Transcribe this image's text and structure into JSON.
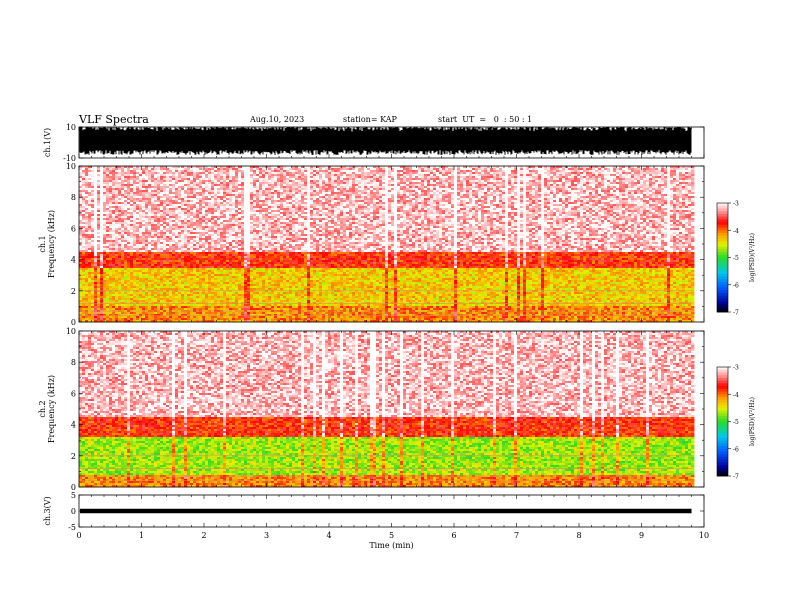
{
  "header": {
    "title": "VLF Spectra",
    "date": "Aug.10, 2023",
    "station": "station= KAP",
    "start_ut": "start  UT  =   0  : 50 : 1"
  },
  "chart_data": [
    {
      "name": "ch1-waveform",
      "type": "line",
      "ylabel": "ch.1(V)",
      "ylim": [
        -10,
        10
      ],
      "yticks": [
        "10",
        "-10"
      ],
      "xlim": [
        0,
        10
      ],
      "note": "waveform envelope saturating between about -7 and +10 V from 0 to 9.8 min"
    },
    {
      "name": "ch1-spectrogram",
      "type": "heatmap",
      "ylabel": "ch.1\nFrequency  (kHz)",
      "ylim": [
        0,
        10
      ],
      "yticks": [
        "0",
        "2",
        "4",
        "6",
        "8",
        "10"
      ],
      "xlim": [
        0,
        10
      ],
      "data_end_min": 9.8,
      "colorbar": {
        "label": "log(PSD)(V²/Hz)",
        "range": [
          -7,
          -3
        ],
        "ticks": [
          "-3",
          "-4",
          "-5",
          "-6",
          "-7"
        ]
      },
      "bands_khz": [
        {
          "from": 0,
          "to": 1.0,
          "level": -4.1
        },
        {
          "from": 1.0,
          "to": 3.5,
          "level": -4.35
        },
        {
          "from": 3.5,
          "to": 4.5,
          "level": -3.8
        },
        {
          "from": 4.5,
          "to": 10,
          "level": -3.2
        }
      ]
    },
    {
      "name": "ch2-spectrogram",
      "type": "heatmap",
      "ylabel": "ch.2\nFrequency  (kHz)",
      "ylim": [
        0,
        10
      ],
      "yticks": [
        "0",
        "2",
        "4",
        "6",
        "8",
        "10"
      ],
      "xlim": [
        0,
        10
      ],
      "data_end_min": 9.8,
      "colorbar": {
        "label": "log(PSD)(V²/Hz)",
        "range": [
          -7,
          -3
        ],
        "ticks": [
          "-3",
          "-4",
          "-5",
          "-6",
          "-7"
        ]
      },
      "bands_khz": [
        {
          "from": 0,
          "to": 0.8,
          "level": -4.1
        },
        {
          "from": 0.8,
          "to": 3.2,
          "level": -4.7
        },
        {
          "from": 3.2,
          "to": 4.5,
          "level": -3.8
        },
        {
          "from": 4.5,
          "to": 10,
          "level": -3.2
        }
      ]
    },
    {
      "name": "ch3-waveform",
      "type": "line",
      "ylabel": "ch.3(V)",
      "ylim": [
        -5,
        5
      ],
      "yticks": [
        "5",
        "0",
        "-5"
      ],
      "xlim": [
        0,
        10
      ],
      "xlabel": "Time  (min)",
      "xticks": [
        "0",
        "1",
        "2",
        "3",
        "4",
        "5",
        "6",
        "7",
        "8",
        "9",
        "10"
      ],
      "note": "narrow band near 0 V from 0 to 9.8 min"
    }
  ]
}
